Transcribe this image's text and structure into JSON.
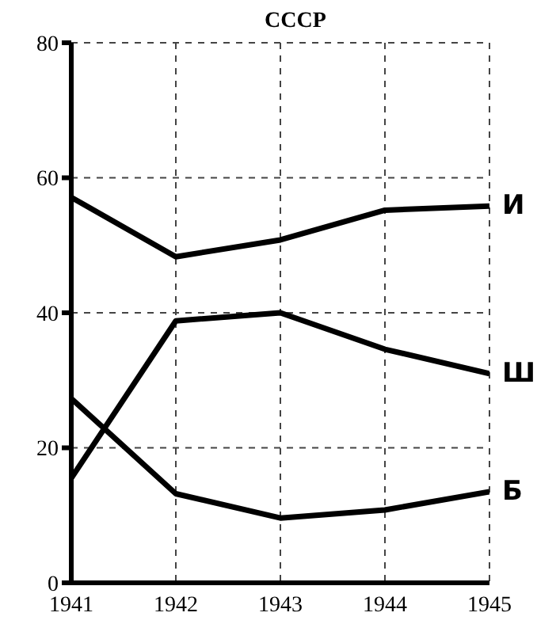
{
  "chart_data": {
    "type": "line",
    "title": "СССР",
    "x": [
      1941,
      1942,
      1943,
      1944,
      1945
    ],
    "series": [
      {
        "name": "И",
        "color": "#000000",
        "values": [
          57.1,
          48.3,
          50.8,
          55.2,
          55.8
        ]
      },
      {
        "name": "Ш",
        "color": "#000000",
        "values": [
          15.5,
          38.8,
          40,
          34.6,
          31
        ]
      },
      {
        "name": "Б",
        "color": "#000000",
        "values": [
          27.3,
          13.2,
          9.6,
          10.8,
          13.5
        ]
      }
    ],
    "xlim": [
      1941,
      1945
    ],
    "xticks": [
      1941,
      1942,
      1943,
      1944,
      1945
    ],
    "ylim": [
      0,
      80
    ],
    "yticks": [
      0,
      20,
      40,
      60,
      80
    ],
    "grid": true,
    "marker": "none",
    "line_style": "solid"
  }
}
